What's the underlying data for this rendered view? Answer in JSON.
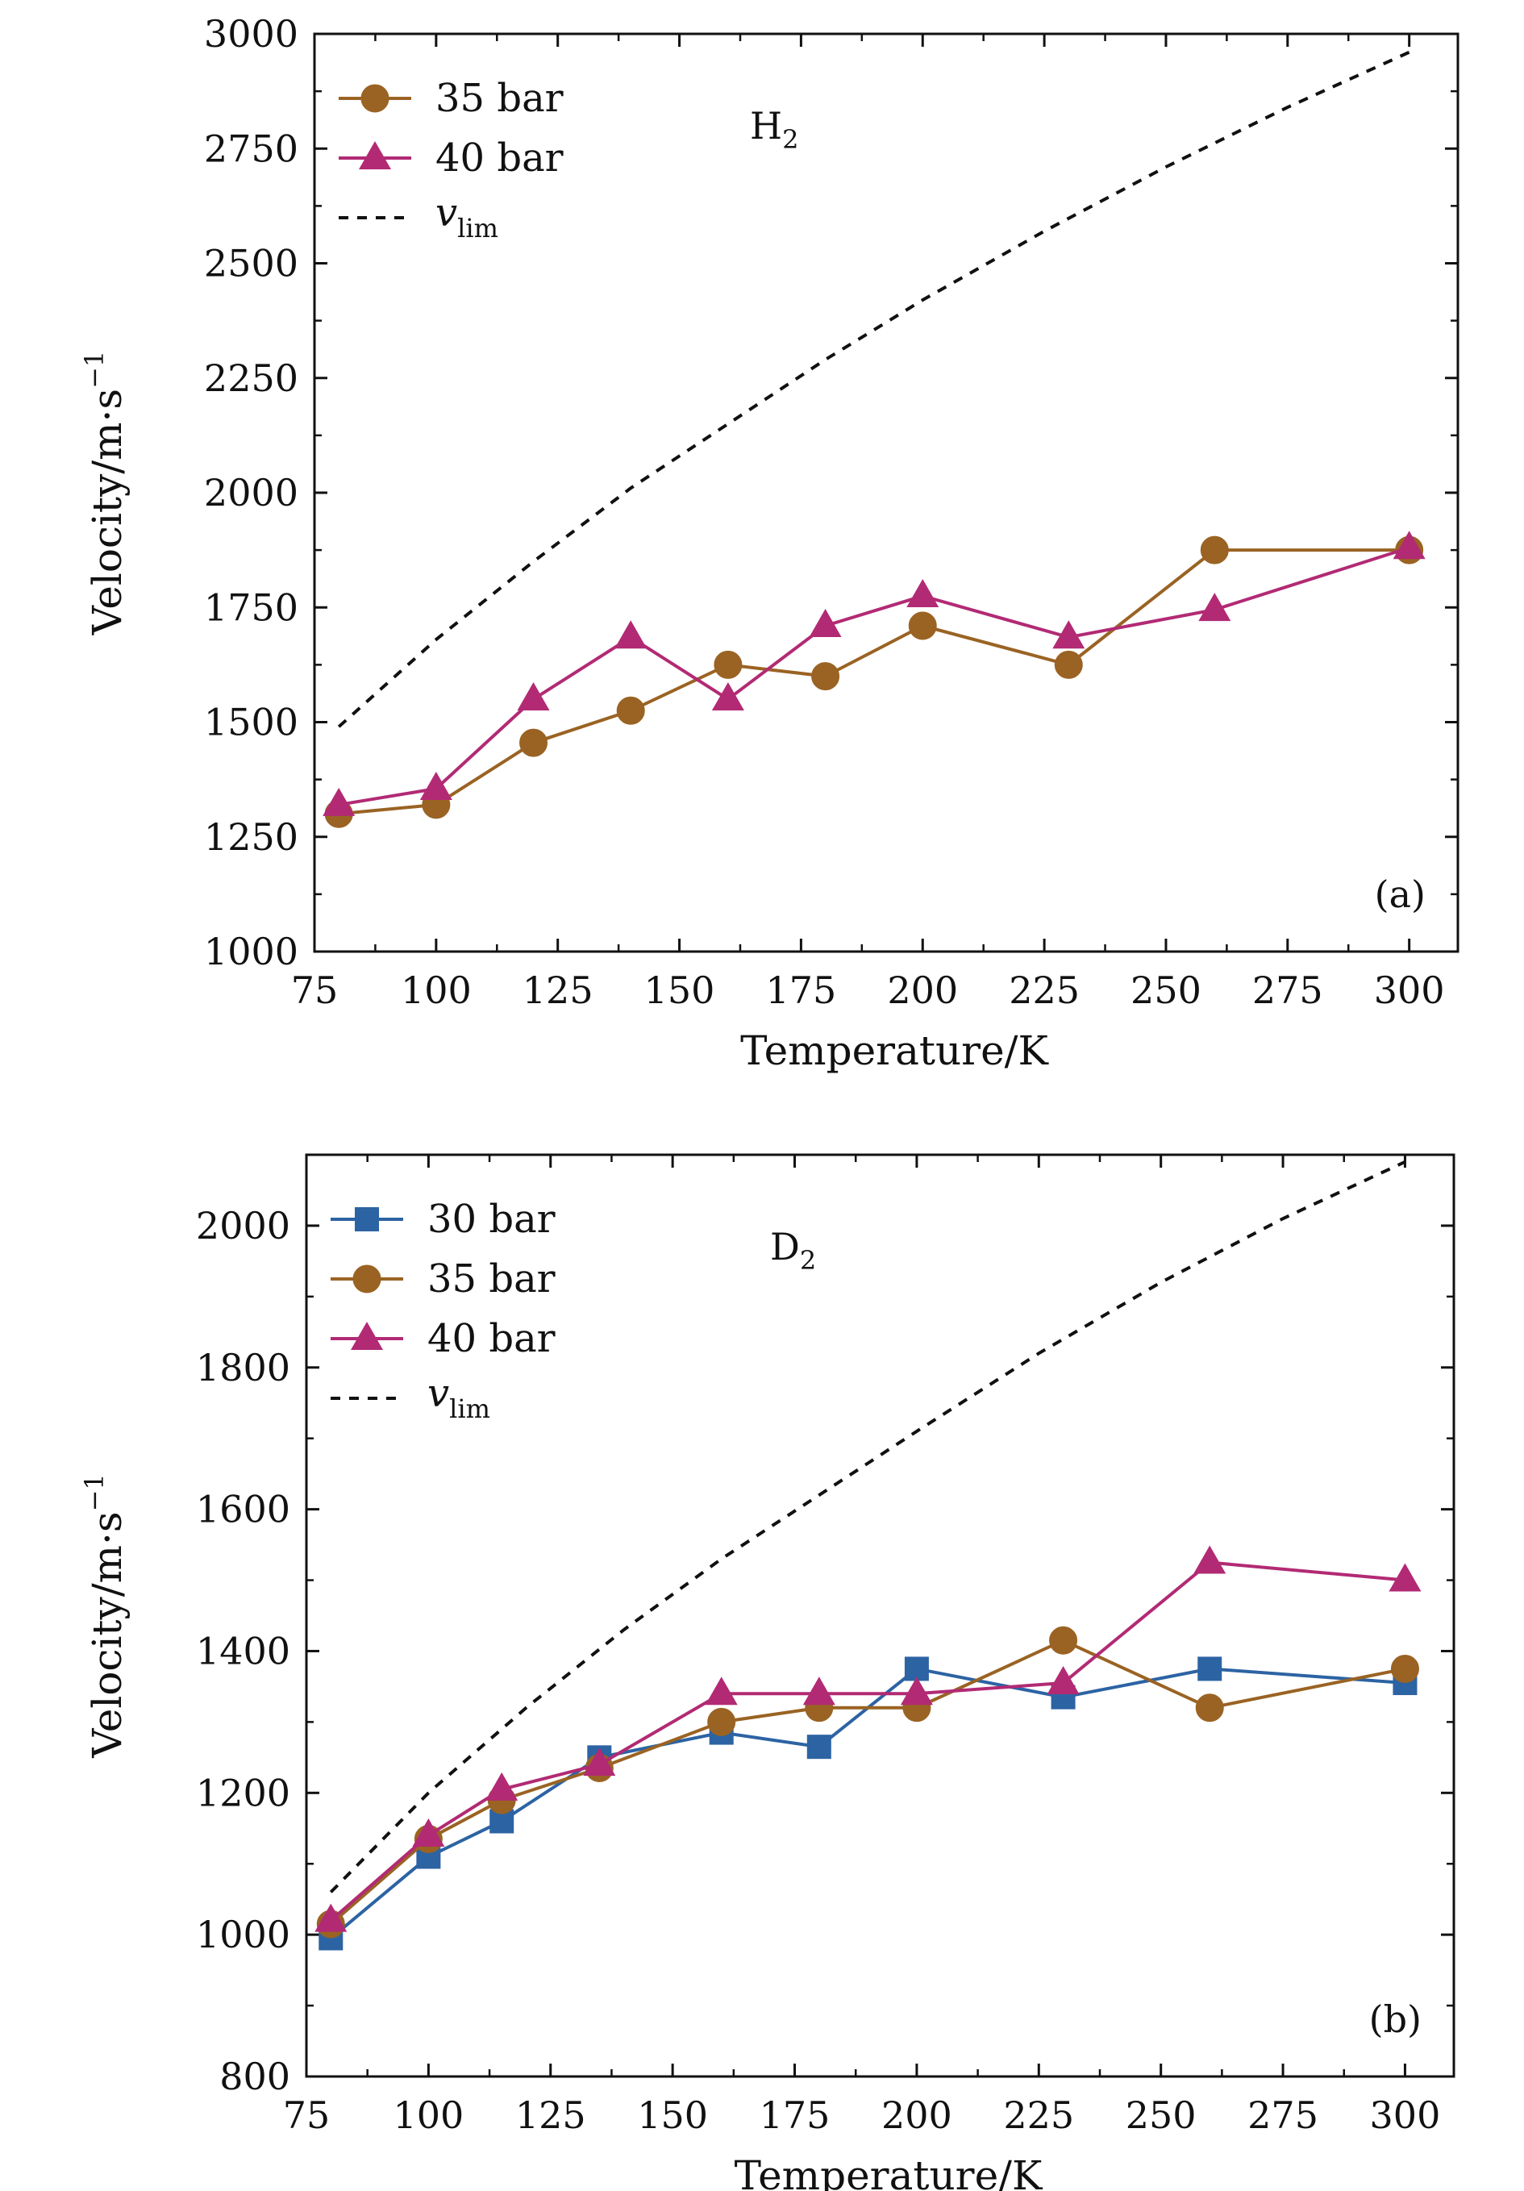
{
  "chart_data": [
    {
      "panel": "(a)",
      "gas_label": {
        "main": "H",
        "sub": "2"
      },
      "type": "line",
      "xlabel": "Temperature/K",
      "ylabel": "Velocity/m·s",
      "ylabel_sup": "−1",
      "xlim": [
        75,
        310
      ],
      "ylim": [
        1000,
        3000
      ],
      "xticks": [
        75,
        100,
        125,
        150,
        175,
        200,
        225,
        250,
        275,
        300
      ],
      "yticks": [
        1000,
        1250,
        1500,
        1750,
        2000,
        2250,
        2500,
        2750,
        3000
      ],
      "legend_position": "top-left",
      "vlim_label": {
        "main": "v",
        "sub": "lim"
      },
      "vlim_curve": {
        "x": [
          80,
          100,
          120,
          140,
          160,
          180,
          200,
          225,
          250,
          275,
          300
        ],
        "y": [
          1490,
          1680,
          1850,
          2010,
          2150,
          2290,
          2420,
          2570,
          2710,
          2840,
          2960
        ]
      },
      "series": [
        {
          "name": "35 bar",
          "marker": "circle",
          "color": "#9a6323",
          "x": [
            80,
            100,
            120,
            140,
            160,
            180,
            200,
            230,
            260,
            300
          ],
          "y": [
            1300,
            1320,
            1455,
            1525,
            1625,
            1600,
            1710,
            1625,
            1875,
            1875
          ]
        },
        {
          "name": "40 bar",
          "marker": "triangle",
          "color": "#b22a74",
          "x": [
            80,
            100,
            120,
            140,
            160,
            180,
            200,
            230,
            260,
            300
          ],
          "y": [
            1320,
            1355,
            1550,
            1685,
            1550,
            1710,
            1775,
            1685,
            1745,
            1880
          ]
        }
      ]
    },
    {
      "panel": "(b)",
      "gas_label": {
        "main": "D",
        "sub": "2"
      },
      "type": "line",
      "xlabel": "Temperature/K",
      "ylabel": "Velocity/m·s",
      "ylabel_sup": "−1",
      "xlim": [
        75,
        310
      ],
      "ylim": [
        800,
        2100
      ],
      "xticks": [
        75,
        100,
        125,
        150,
        175,
        200,
        225,
        250,
        275,
        300
      ],
      "yticks": [
        800,
        1000,
        1200,
        1400,
        1600,
        1800,
        2000
      ],
      "legend_position": "top-left",
      "vlim_label": {
        "main": "v",
        "sub": "lim"
      },
      "vlim_curve": {
        "x": [
          80,
          100,
          120,
          140,
          160,
          180,
          200,
          225,
          250,
          275,
          300
        ],
        "y": [
          1060,
          1200,
          1320,
          1430,
          1530,
          1620,
          1710,
          1820,
          1920,
          2010,
          2090
        ]
      },
      "series": [
        {
          "name": "30 bar",
          "marker": "square",
          "color": "#2c63a3",
          "x": [
            80,
            100,
            115,
            135,
            160,
            180,
            200,
            230,
            260,
            300
          ],
          "y": [
            995,
            1110,
            1160,
            1250,
            1285,
            1265,
            1375,
            1335,
            1375,
            1355
          ]
        },
        {
          "name": "35 bar",
          "marker": "circle",
          "color": "#9a6323",
          "x": [
            80,
            100,
            115,
            135,
            160,
            180,
            200,
            230,
            260,
            300
          ],
          "y": [
            1015,
            1135,
            1190,
            1235,
            1300,
            1320,
            1320,
            1415,
            1320,
            1375
          ]
        },
        {
          "name": "40 bar",
          "marker": "triangle",
          "color": "#b22a74",
          "x": [
            80,
            100,
            115,
            135,
            160,
            180,
            200,
            230,
            260,
            300
          ],
          "y": [
            1020,
            1140,
            1205,
            1240,
            1340,
            1340,
            1340,
            1355,
            1525,
            1500
          ]
        }
      ]
    }
  ]
}
